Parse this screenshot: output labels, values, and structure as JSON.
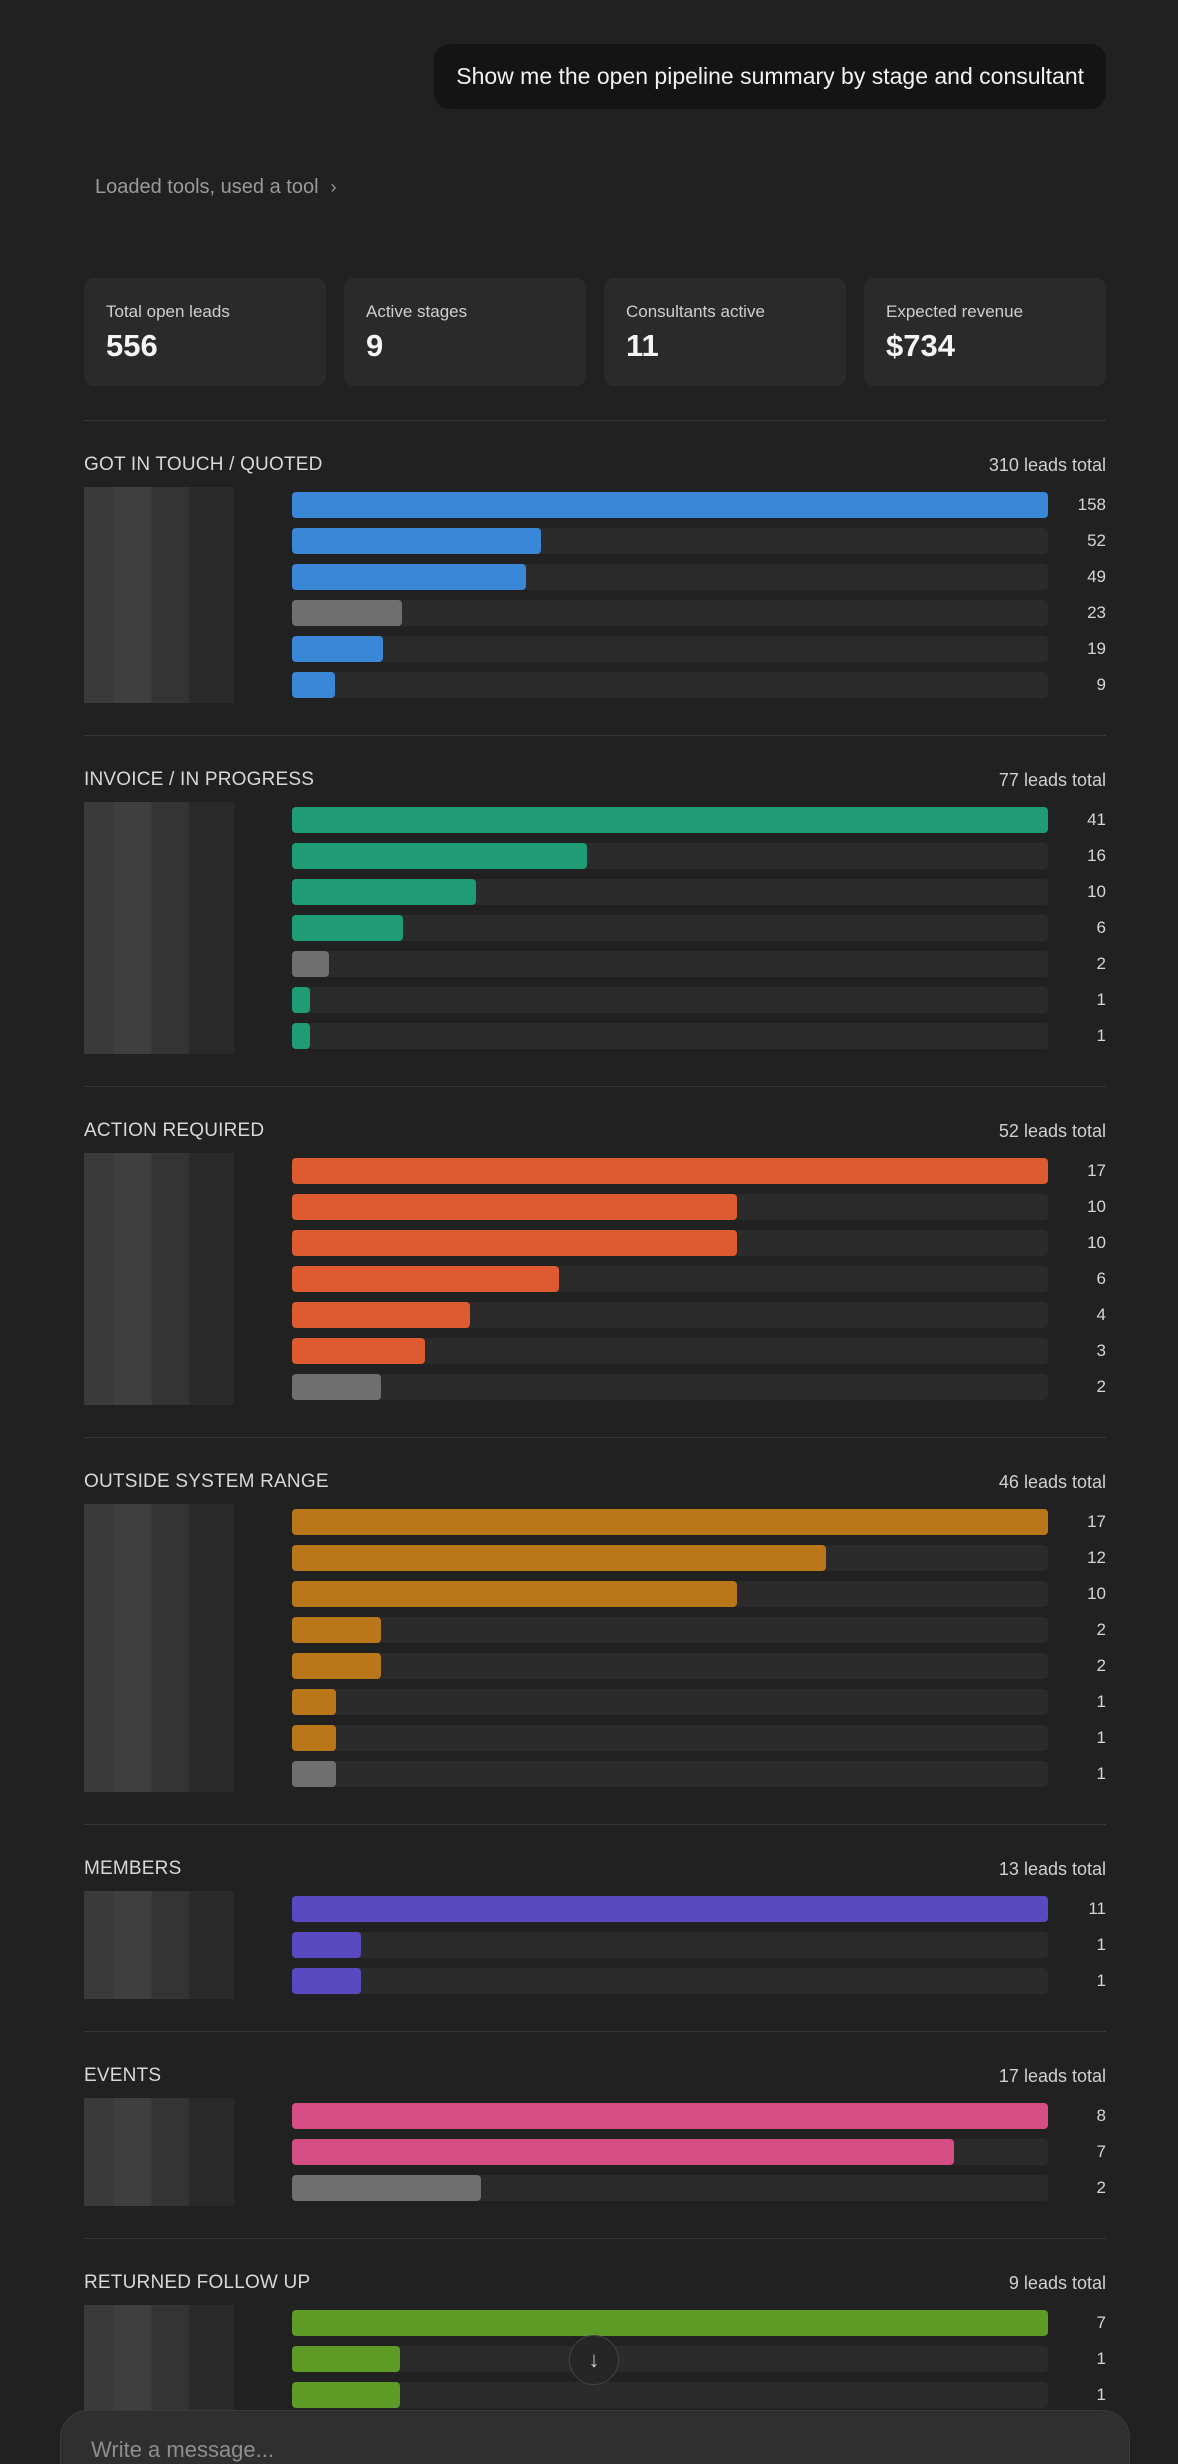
{
  "user_message": "Show me the open pipeline summary by stage and consultant",
  "tools_summary": "Loaded tools, used a tool",
  "stats": [
    {
      "label": "Total open leads",
      "value": "556"
    },
    {
      "label": "Active stages",
      "value": "9"
    },
    {
      "label": "Consultants active",
      "value": "11"
    },
    {
      "label": "Expected revenue",
      "value": "$734"
    }
  ],
  "colors": {
    "got_in_touch": "#3a87d8",
    "invoice": "#1f9b76",
    "action": "#de5b32",
    "outside": "#b97719",
    "members": "#5a4ac2",
    "events": "#d44d83",
    "returned": "#5e9a26",
    "other": "#6f6f6f"
  },
  "chart_data": {
    "type": "bar",
    "sections": [
      {
        "title": "GOT IN TOUCH / QUOTED",
        "total": "310 leads total",
        "color_key": "got_in_touch",
        "values": [
          158,
          52,
          49,
          23,
          19,
          9
        ],
        "gray": [
          false,
          false,
          false,
          true,
          false,
          false
        ]
      },
      {
        "title": "INVOICE / IN PROGRESS",
        "total": "77 leads total",
        "color_key": "invoice",
        "values": [
          41,
          16,
          10,
          6,
          2,
          1,
          1
        ],
        "gray": [
          false,
          false,
          false,
          false,
          true,
          false,
          false
        ]
      },
      {
        "title": "ACTION REQUIRED",
        "total": "52 leads total",
        "color_key": "action",
        "values": [
          17,
          10,
          10,
          6,
          4,
          3,
          2
        ],
        "gray": [
          false,
          false,
          false,
          false,
          false,
          false,
          true
        ]
      },
      {
        "title": "OUTSIDE SYSTEM RANGE",
        "total": "46 leads total",
        "color_key": "outside",
        "values": [
          17,
          12,
          10,
          2,
          2,
          1,
          1,
          1
        ],
        "gray": [
          false,
          false,
          false,
          false,
          false,
          false,
          false,
          true
        ]
      },
      {
        "title": "MEMBERS",
        "total": "13 leads total",
        "color_key": "members",
        "values": [
          11,
          1,
          1
        ],
        "gray": [
          false,
          false,
          false
        ]
      },
      {
        "title": "EVENTS",
        "total": "17 leads total",
        "color_key": "events",
        "values": [
          8,
          7,
          2
        ],
        "gray": [
          false,
          false,
          true
        ]
      },
      {
        "title": "RETURNED FOLLOW UP",
        "total": "9 leads total",
        "color_key": "returned",
        "values": [
          7,
          1,
          1
        ],
        "gray": [
          false,
          false,
          false
        ]
      }
    ]
  },
  "composer": {
    "placeholder": "Write a message..."
  },
  "scroll_icon": "arrow-down-icon"
}
